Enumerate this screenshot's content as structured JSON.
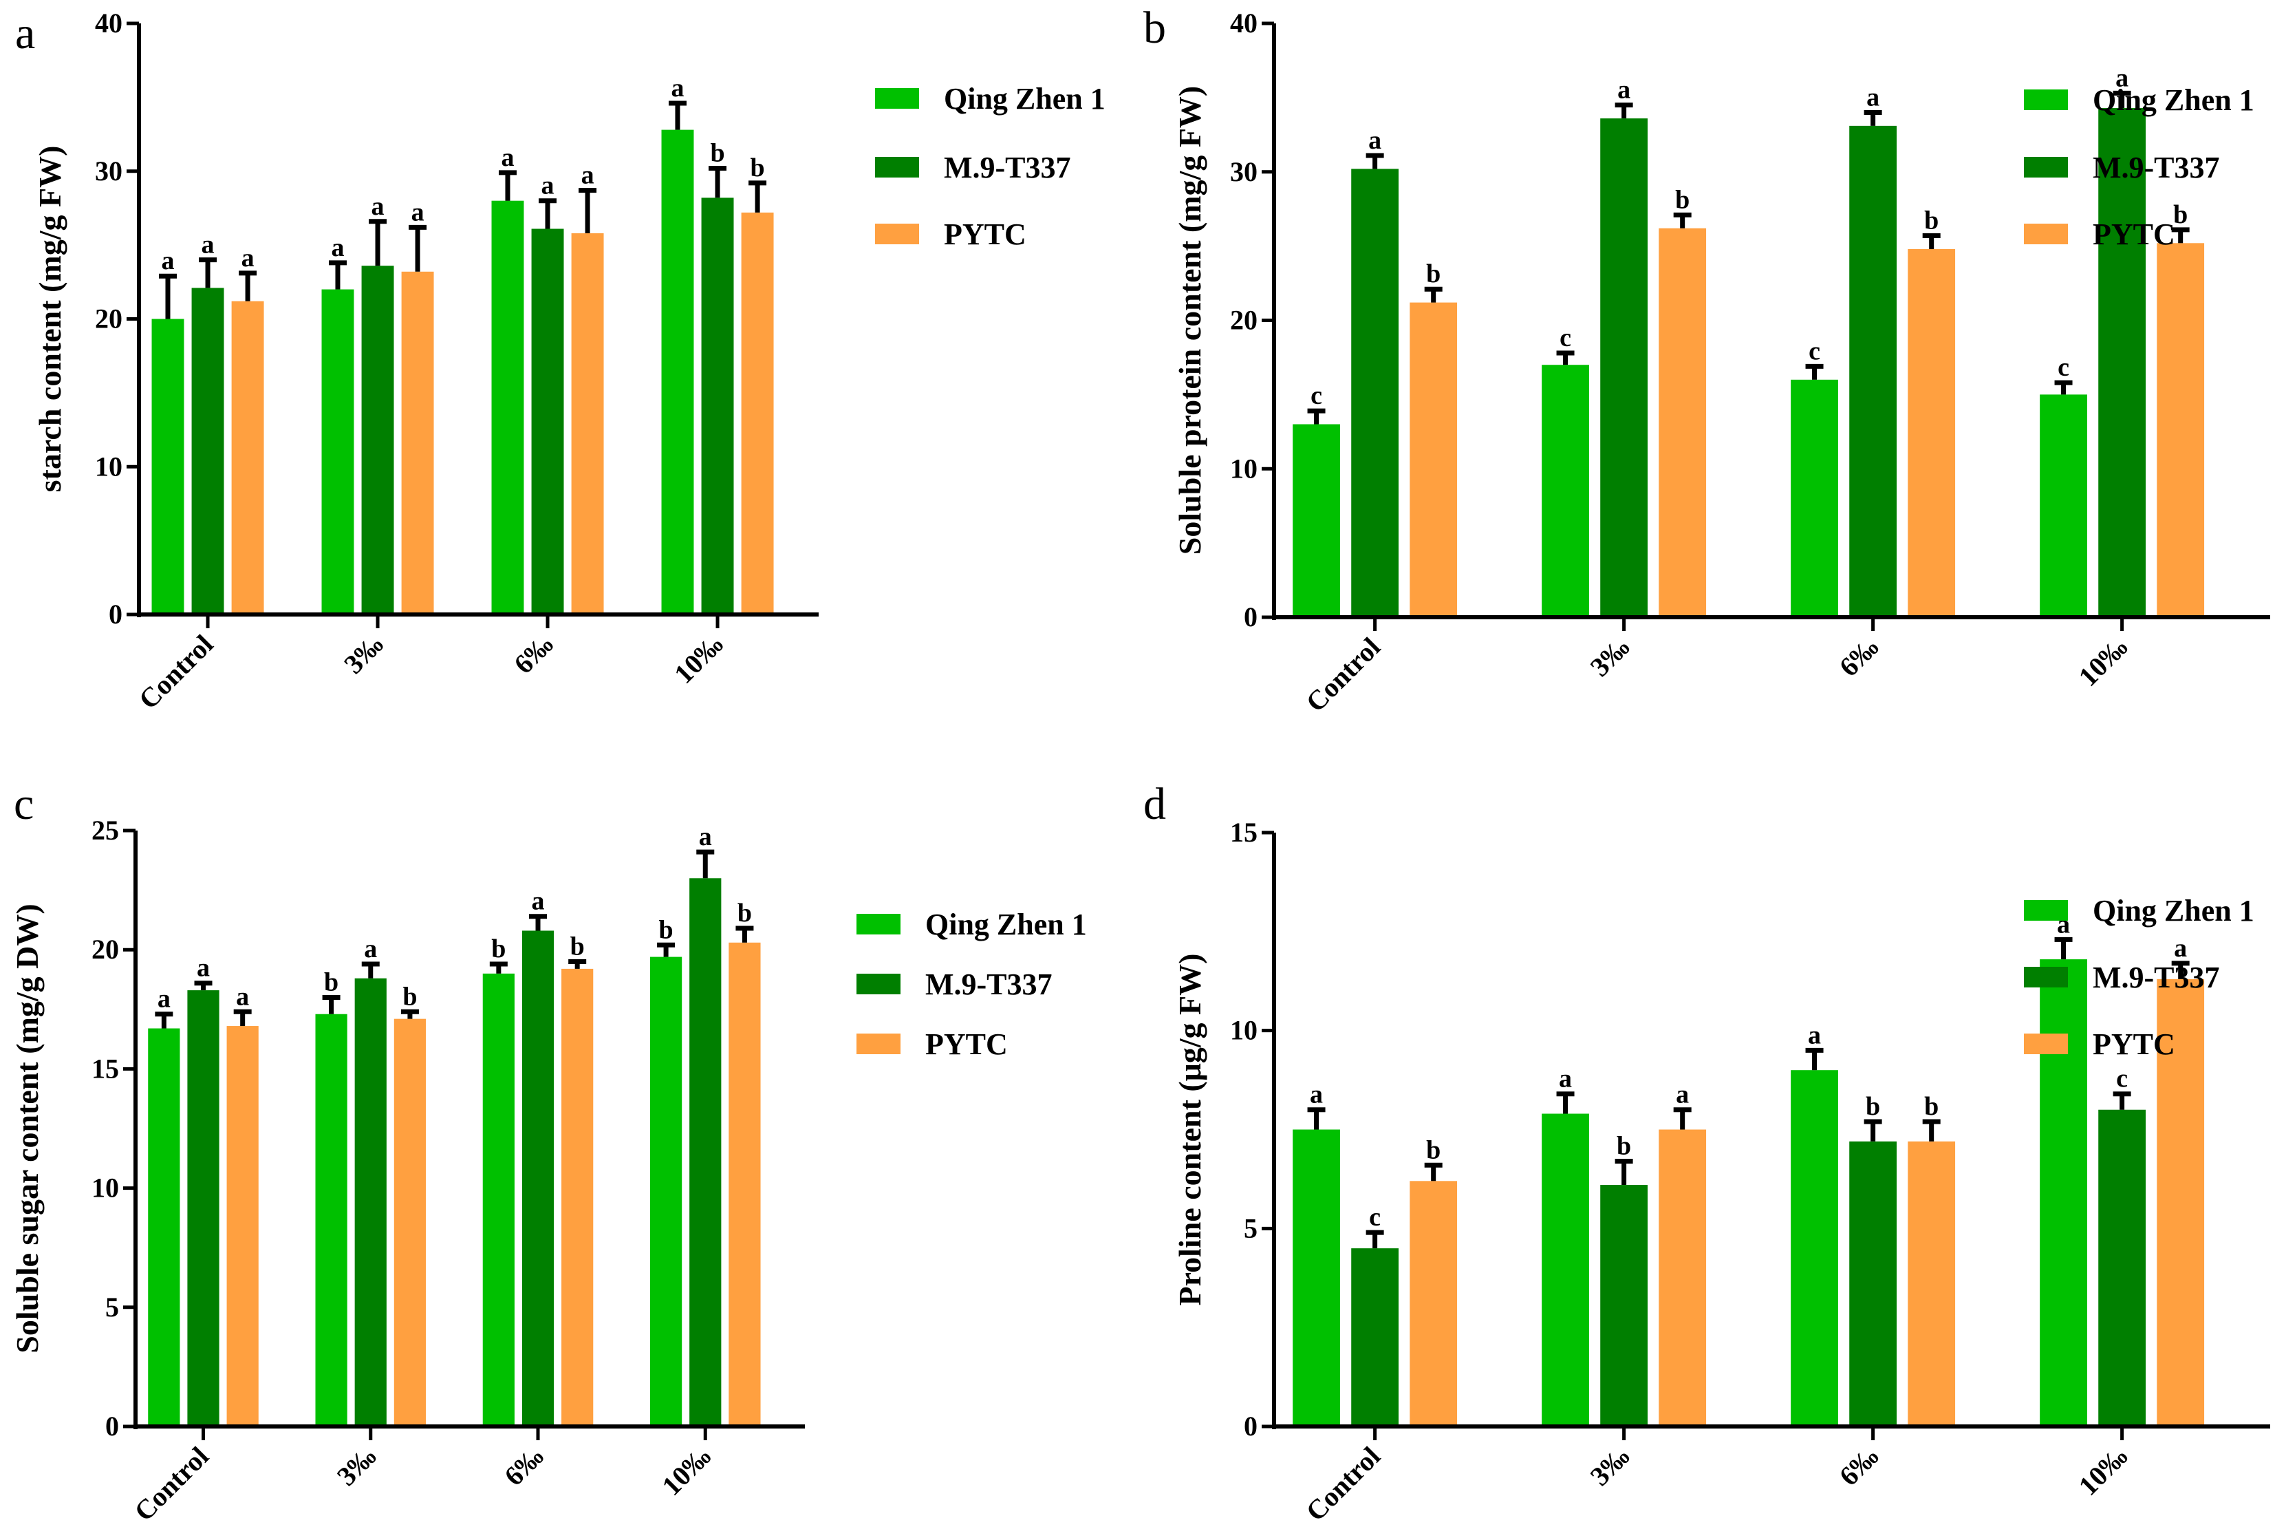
{
  "figure": {
    "series_names": [
      "Qing Zhen 1",
      "M.9-T337",
      "PYTC"
    ],
    "series_colors": [
      "#00c000",
      "#007f00",
      "#ffa040"
    ]
  },
  "chart_data": [
    {
      "panel": "a",
      "type": "bar",
      "title": "",
      "xlabel": "",
      "ylabel": "starch content (mg/g FW)",
      "ylim": [
        0,
        40
      ],
      "yticks": [
        0,
        10,
        20,
        30,
        40
      ],
      "categories": [
        "Control",
        "3‰",
        "6‰",
        "10‰"
      ],
      "legend": {
        "entries": [
          "Qing Zhen 1",
          "M.9-T337",
          "PYTC"
        ],
        "placement": "right"
      },
      "grid": false,
      "series": [
        {
          "name": "Qing Zhen 1",
          "color": "#00c000",
          "values": [
            20.0,
            22.0,
            28.0,
            32.8
          ],
          "errors": [
            2.9,
            1.8,
            1.9,
            1.8
          ],
          "letters": [
            "a",
            "a",
            "a",
            "a"
          ]
        },
        {
          "name": "M.9-T337",
          "color": "#007f00",
          "values": [
            22.1,
            23.6,
            26.1,
            28.2
          ],
          "errors": [
            1.9,
            3.0,
            1.9,
            2.0
          ],
          "letters": [
            "a",
            "a",
            "a",
            "b"
          ]
        },
        {
          "name": "PYTC",
          "color": "#ffa040",
          "values": [
            21.2,
            23.2,
            25.8,
            27.2
          ],
          "errors": [
            1.9,
            3.0,
            2.9,
            2.0
          ],
          "letters": [
            "a",
            "a",
            "a",
            "b"
          ]
        }
      ]
    },
    {
      "panel": "b",
      "type": "bar",
      "title": "",
      "xlabel": "",
      "ylabel": "Soluble protein content (mg/g FW)",
      "ylim": [
        0,
        40
      ],
      "yticks": [
        0,
        10,
        20,
        30,
        40
      ],
      "categories": [
        "Control",
        "3‰",
        "6‰",
        "10‰"
      ],
      "legend": {
        "entries": [
          "Qing Zhen 1",
          "M.9-T337",
          "PYTC"
        ],
        "placement": "right"
      },
      "grid": false,
      "series": [
        {
          "name": "Qing Zhen 1",
          "color": "#00c000",
          "values": [
            13.0,
            17.0,
            16.0,
            15.0
          ],
          "errors": [
            0.9,
            0.8,
            0.9,
            0.8
          ],
          "letters": [
            "c",
            "c",
            "c",
            "c"
          ]
        },
        {
          "name": "M.9-T337",
          "color": "#007f00",
          "values": [
            30.2,
            33.6,
            33.1,
            34.3
          ],
          "errors": [
            0.9,
            0.9,
            0.9,
            1.0
          ],
          "letters": [
            "a",
            "a",
            "a",
            "a"
          ]
        },
        {
          "name": "PYTC",
          "color": "#ffa040",
          "values": [
            21.2,
            26.2,
            24.8,
            25.2
          ],
          "errors": [
            0.9,
            0.9,
            0.9,
            0.9
          ],
          "letters": [
            "b",
            "b",
            "b",
            "b"
          ]
        }
      ]
    },
    {
      "panel": "c",
      "type": "bar",
      "title": "",
      "xlabel": "",
      "ylabel": "Soluble sugar content (mg/g DW)",
      "ylim": [
        0,
        25
      ],
      "yticks": [
        0,
        5,
        10,
        15,
        20,
        25
      ],
      "categories": [
        "Control",
        "3‰",
        "6‰",
        "10‰"
      ],
      "legend": {
        "entries": [
          "Qing Zhen 1",
          "M.9-T337",
          "PYTC"
        ],
        "placement": "right"
      },
      "grid": false,
      "series": [
        {
          "name": "Qing Zhen 1",
          "color": "#00c000",
          "values": [
            16.7,
            17.3,
            19.0,
            19.7
          ],
          "errors": [
            0.6,
            0.7,
            0.4,
            0.5
          ],
          "letters": [
            "a",
            "b",
            "b",
            "b"
          ]
        },
        {
          "name": "M.9-T337",
          "color": "#007f00",
          "values": [
            18.3,
            18.8,
            20.8,
            23.0
          ],
          "errors": [
            0.3,
            0.6,
            0.6,
            1.1
          ],
          "letters": [
            "a",
            "a",
            "a",
            "a"
          ]
        },
        {
          "name": "PYTC",
          "color": "#ffa040",
          "values": [
            16.8,
            17.1,
            19.2,
            20.3
          ],
          "errors": [
            0.6,
            0.3,
            0.3,
            0.6
          ],
          "letters": [
            "a",
            "b",
            "b",
            "b"
          ]
        }
      ]
    },
    {
      "panel": "d",
      "type": "bar",
      "title": "",
      "xlabel": "",
      "ylabel": "Proline content (μg/g FW)",
      "ylim": [
        0,
        15
      ],
      "yticks": [
        0,
        5,
        10,
        15
      ],
      "categories": [
        "Control",
        "3‰",
        "6‰",
        "10‰"
      ],
      "legend": {
        "entries": [
          "Qing Zhen 1",
          "M.9-T337",
          "PYTC"
        ],
        "placement": "right"
      },
      "grid": false,
      "series": [
        {
          "name": "Qing Zhen 1",
          "color": "#00c000",
          "values": [
            7.5,
            7.9,
            9.0,
            11.8
          ],
          "errors": [
            0.5,
            0.5,
            0.5,
            0.5
          ],
          "letters": [
            "a",
            "a",
            "a",
            "a"
          ]
        },
        {
          "name": "M.9-T337",
          "color": "#007f00",
          "values": [
            4.5,
            6.1,
            7.2,
            8.0
          ],
          "errors": [
            0.4,
            0.6,
            0.5,
            0.4
          ],
          "letters": [
            "c",
            "b",
            "b",
            "c"
          ]
        },
        {
          "name": "PYTC",
          "color": "#ffa040",
          "values": [
            6.2,
            7.5,
            7.2,
            11.3
          ],
          "errors": [
            0.4,
            0.5,
            0.5,
            0.4
          ],
          "letters": [
            "b",
            "a",
            "b",
            "a"
          ]
        }
      ]
    }
  ]
}
